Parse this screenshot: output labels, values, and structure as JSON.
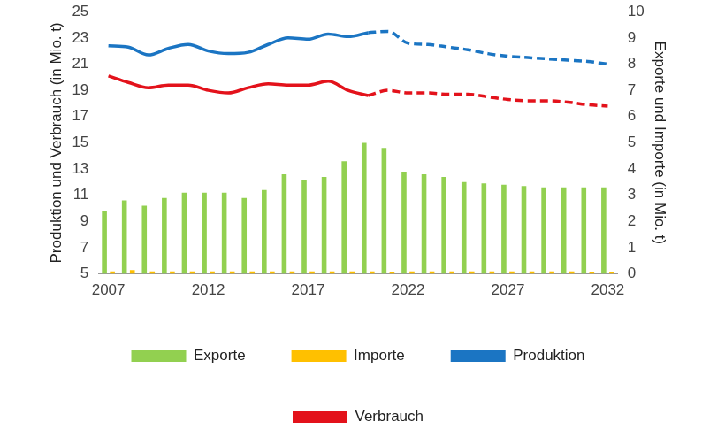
{
  "chart_data": {
    "type": "bar",
    "categories": [
      "2007",
      null,
      null,
      null,
      null,
      "2012",
      null,
      null,
      null,
      null,
      "2017",
      null,
      null,
      null,
      null,
      "2022",
      null,
      null,
      null,
      null,
      "2027",
      null,
      null,
      null,
      null,
      "2032"
    ],
    "y_label": "Produktion und Verbrauch (in Mio. t)",
    "y2_label": "Exporte und Importe (in Mio. t)",
    "ylim": [
      5,
      25
    ],
    "yticks": [
      5,
      7,
      9,
      11,
      13,
      15,
      17,
      19,
      21,
      23,
      25
    ],
    "y2lim": [
      0,
      10
    ],
    "y2ticks": [
      0,
      1,
      2,
      3,
      4,
      5,
      6,
      7,
      8,
      9,
      10
    ],
    "grid": false,
    "legend": "bottom",
    "series": [
      {
        "name": "Exporte",
        "type": "bar",
        "axis": "y2",
        "color": "#92d050",
        "values": [
          2.4,
          2.8,
          2.6,
          2.9,
          3.1,
          3.1,
          3.1,
          2.9,
          3.2,
          3.8,
          3.6,
          3.7,
          4.3,
          5.0,
          4.8,
          3.9,
          3.8,
          3.7,
          3.5,
          3.45,
          3.4,
          3.35,
          3.3,
          3.3,
          3.3,
          3.3
        ]
      },
      {
        "name": "Importe",
        "type": "bar",
        "axis": "y2",
        "color": "#ffc000",
        "values": [
          0.1,
          0.15,
          0.1,
          0.1,
          0.1,
          0.1,
          0.1,
          0.1,
          0.1,
          0.1,
          0.1,
          0.1,
          0.1,
          0.1,
          0.05,
          0.1,
          0.1,
          0.1,
          0.1,
          0.1,
          0.1,
          0.1,
          0.1,
          0.1,
          0.05,
          0.05
        ]
      },
      {
        "name": "Produktion",
        "type": "line",
        "color": "#1b75c3",
        "line_style": "solid",
        "marker": "none",
        "values": [
          22.4,
          22.3,
          21.7,
          22.2,
          22.5,
          22.0,
          21.8,
          21.9,
          22.5,
          23.0,
          22.9,
          23.3,
          23.1,
          23.4,
          null,
          null,
          null,
          null,
          null,
          null,
          null,
          null,
          null,
          null,
          null,
          null
        ]
      },
      {
        "name": "Produktion",
        "type": "line",
        "color": "#1b75c3",
        "line_style": "dashed",
        "marker": "none",
        "values": [
          null,
          null,
          null,
          null,
          null,
          null,
          null,
          null,
          null,
          null,
          null,
          null,
          null,
          23.4,
          23.5,
          22.6,
          22.5,
          22.3,
          22.1,
          21.8,
          21.6,
          21.5,
          21.4,
          21.3,
          21.2,
          21.0
        ]
      },
      {
        "name": "Verbrauch",
        "type": "line",
        "color": "#e3121b",
        "line_style": "solid",
        "marker": "none",
        "values": [
          20.1,
          19.6,
          19.2,
          19.4,
          19.4,
          19.0,
          18.8,
          19.2,
          19.5,
          19.4,
          19.4,
          19.7,
          19.0,
          18.6,
          null,
          null,
          null,
          null,
          null,
          null,
          null,
          null,
          null,
          null,
          null,
          null
        ]
      },
      {
        "name": "Verbrauch",
        "type": "line",
        "color": "#e3121b",
        "line_style": "dashed",
        "marker": "none",
        "values": [
          null,
          null,
          null,
          null,
          null,
          null,
          null,
          null,
          null,
          null,
          null,
          null,
          null,
          18.6,
          19.0,
          18.8,
          18.8,
          18.7,
          18.7,
          18.5,
          18.3,
          18.2,
          18.2,
          18.1,
          17.9,
          17.8
        ]
      }
    ]
  }
}
